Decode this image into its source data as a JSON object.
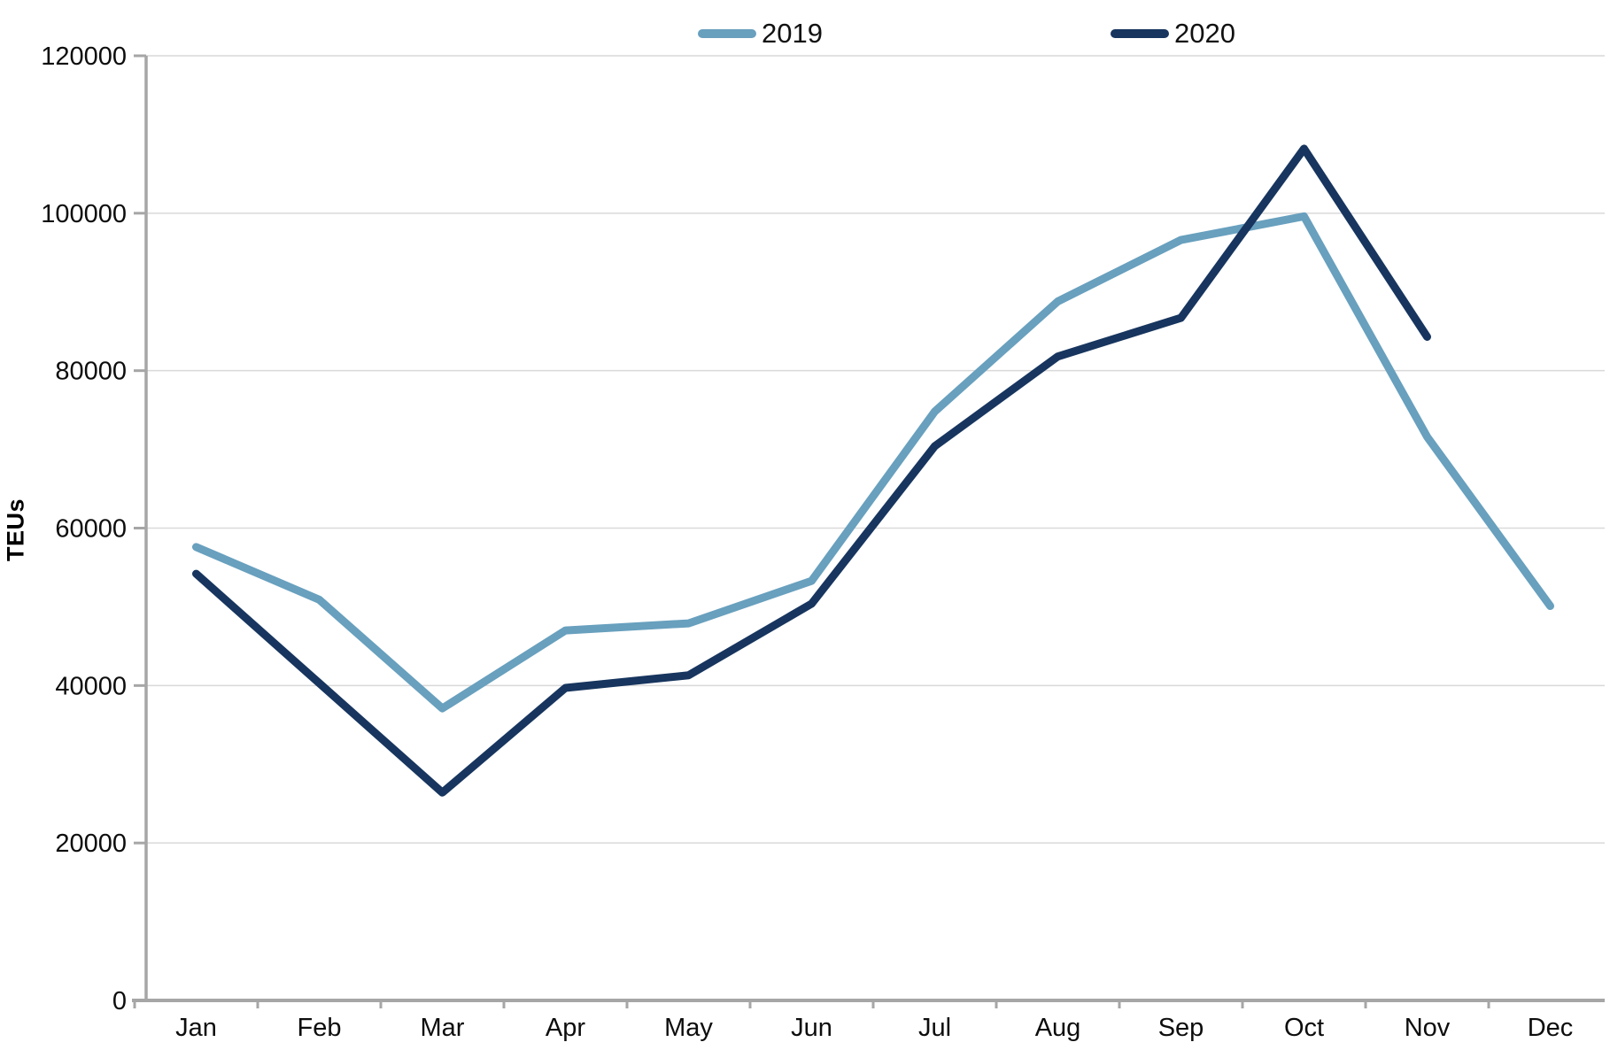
{
  "chart_data": {
    "type": "line",
    "title": "",
    "xlabel": "",
    "ylabel": "TEUs",
    "ylim": [
      0,
      120000
    ],
    "grid": "horizontal",
    "legend_position": "top-center",
    "categories": [
      "Jan",
      "Feb",
      "Mar",
      "Apr",
      "May",
      "Jun",
      "Jul",
      "Aug",
      "Sep",
      "Oct",
      "Nov",
      "Dec"
    ],
    "y_ticks": [
      0,
      20000,
      40000,
      60000,
      80000,
      100000,
      120000
    ],
    "y_tick_labels": [
      "0",
      "20000",
      "40000",
      "60000",
      "80000",
      "100000",
      "120000"
    ],
    "series": [
      {
        "name": "2019",
        "color": "#68A0BE",
        "values": [
          57600,
          50900,
          37100,
          47000,
          47900,
          53300,
          74800,
          88800,
          96600,
          99600,
          71600,
          50100
        ]
      },
      {
        "name": "2020",
        "color": "#17355E",
        "values": [
          54200,
          40300,
          26400,
          39700,
          41300,
          50400,
          70400,
          81800,
          86700,
          108200,
          84300,
          null
        ]
      }
    ],
    "colors": {
      "grid": "#D9D9D9",
      "axis": "#A6A6A6",
      "text": "#0D0D0D",
      "background": "#FFFFFF"
    }
  }
}
